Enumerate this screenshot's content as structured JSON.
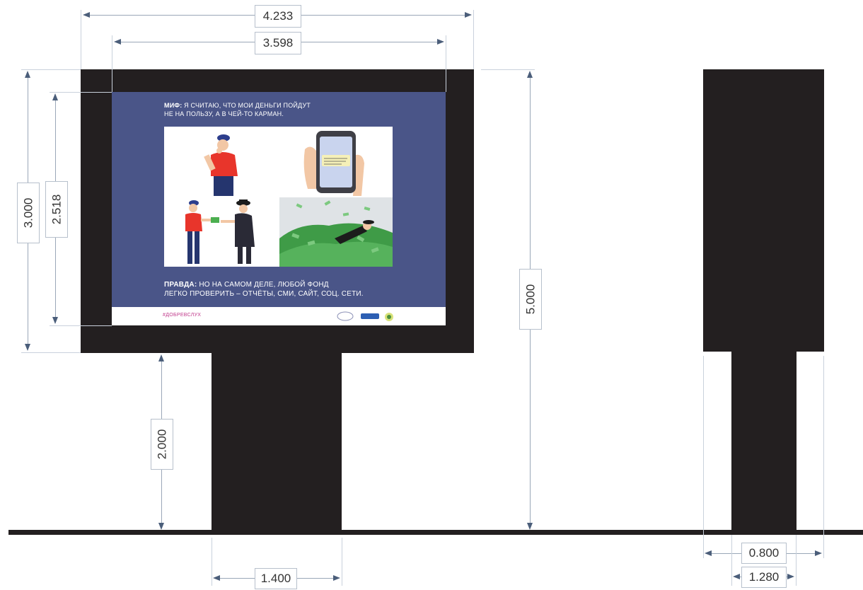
{
  "dimensions": {
    "frame_width": "4.233",
    "screen_width": "3.598",
    "frame_height": "3.000",
    "screen_height": "2.518",
    "total_height": "5.000",
    "pole_height": "2.000",
    "pole_width": "1.400",
    "side_pole_depth": "0.800",
    "side_top_depth": "1.280"
  },
  "poster": {
    "myth_label": "МИФ:",
    "myth_line1": " Я СЧИТАЮ, ЧТО МОИ ДЕНЬГИ ПОЙДУТ",
    "myth_line2": "НЕ НА ПОЛЬЗУ, А В ЧЕЙ-ТО КАРМАН.",
    "truth_label": "ПРАВДА:",
    "truth_line1": " НО НА САМОМ ДЕЛЕ, ЛЮБОЙ ФОНД",
    "truth_line2": "ЛЕГКО ПРОВЕРИТЬ – ОТЧЁТЫ, СМИ, САЙТ, СОЦ. СЕТИ.",
    "hashtag": "#ДОБРЕВСЛУХ",
    "colors": {
      "background": "#4a5588",
      "hashtag": "#c0398b"
    }
  },
  "colors": {
    "structure": "#231f20",
    "dimension_line": "#9aa7b8"
  }
}
